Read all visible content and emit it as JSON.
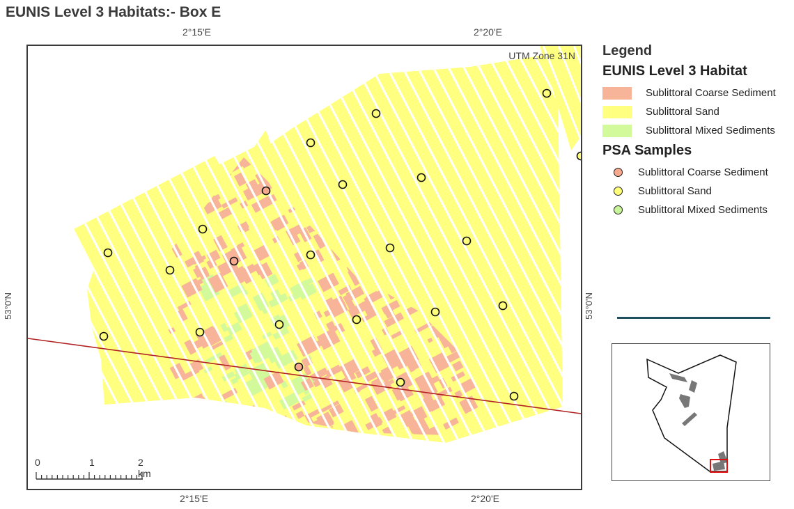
{
  "title": "EUNIS Level 3 Habitats:- Box E",
  "top_ticks": [
    "2°15'E",
    "2°20'E"
  ],
  "bottom_ticks": [
    "2°15'E",
    "2°20'E"
  ],
  "lat_tick": "53°0'N",
  "utm_label": "UTM Zone 31N",
  "scalebar": {
    "labels": [
      "0",
      "1",
      "2 km"
    ]
  },
  "legend": {
    "heading": "Legend",
    "habitat_title": "EUNIS Level 3 Habitat",
    "habitats": [
      {
        "label": "Sublittoral Coarse Sediment",
        "color": "#f7b498"
      },
      {
        "label": "Sublittoral Sand",
        "color": "#ffff80"
      },
      {
        "label": "Sublittoral Mixed Sediments",
        "color": "#d2fa9a"
      }
    ],
    "samples_title": "PSA Samples",
    "samples": [
      {
        "label": "Sublittoral Coarse Sediment",
        "color": "#f7a98e"
      },
      {
        "label": "Sublittoral Sand",
        "color": "#ffff7a"
      },
      {
        "label": "Sublittoral Mixed Sediments",
        "color": "#c8f59a"
      }
    ]
  },
  "colors": {
    "sand": "#ffff80",
    "coarse": "#f7b498",
    "mixed": "#d2fa9a",
    "line": "#b22222",
    "divider": "#1f4e60"
  },
  "samples_points": [
    {
      "habitat": "sand"
    },
    {
      "habitat": "sand"
    },
    {
      "habitat": "sand"
    },
    {
      "habitat": "coarse"
    },
    {
      "habitat": "sand"
    },
    {
      "habitat": "sand"
    },
    {
      "habitat": "sand"
    },
    {
      "habitat": "sand"
    },
    {
      "habitat": "sand"
    },
    {
      "habitat": "sand"
    },
    {
      "habitat": "coarse"
    },
    {
      "habitat": "sand"
    },
    {
      "habitat": "sand"
    },
    {
      "habitat": "sand"
    },
    {
      "habitat": "sand"
    },
    {
      "habitat": "sand"
    },
    {
      "habitat": "sand"
    },
    {
      "habitat": "sand"
    },
    {
      "habitat": "coarse"
    },
    {
      "habitat": "sand"
    },
    {
      "habitat": "sand"
    },
    {
      "habitat": "sand"
    },
    {
      "habitat": "sand"
    }
  ]
}
